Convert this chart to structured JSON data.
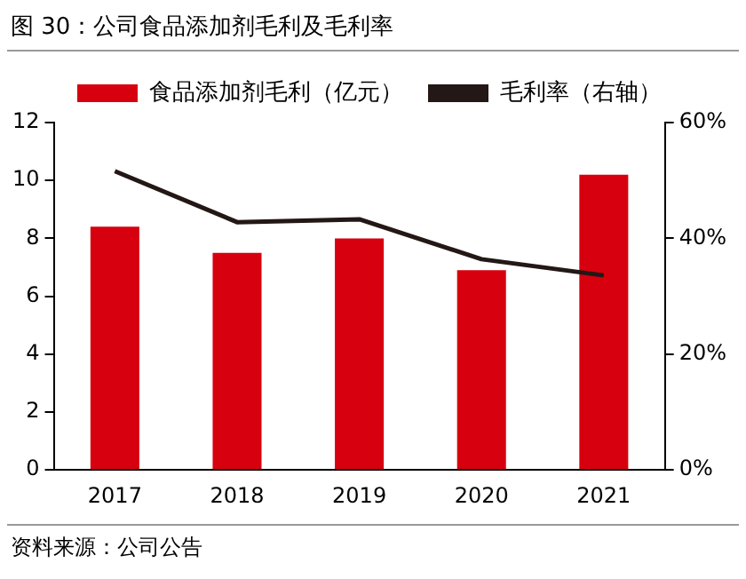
{
  "chart_data": {
    "type": "bar",
    "title": "图 30：公司食品添加剂毛利及毛利率",
    "categories": [
      "2017",
      "2018",
      "2019",
      "2020",
      "2021"
    ],
    "series": [
      {
        "name": "食品添加剂毛利（亿元）",
        "color": "#d7000f",
        "values": [
          8.4,
          7.5,
          8.0,
          6.9,
          10.2
        ]
      },
      {
        "name": "毛利率（右轴）",
        "type": "line",
        "axis": "y2",
        "color": "#231815",
        "values": [
          51.6,
          42.8,
          43.3,
          36.4,
          33.6
        ]
      }
    ],
    "ylim": [
      0,
      12
    ],
    "yticks": [
      0,
      2,
      4,
      6,
      8,
      10,
      12
    ],
    "y2lim": [
      0,
      60
    ],
    "y2ticks": [
      {
        "value": 0,
        "label": "0%"
      },
      {
        "value": 20,
        "label": "20%"
      },
      {
        "value": 40,
        "label": "40%"
      },
      {
        "value": 60,
        "label": "60%"
      }
    ],
    "legend": "top",
    "grid": false,
    "marker": "none",
    "annotations": [
      "资料来源：公司公告"
    ]
  }
}
